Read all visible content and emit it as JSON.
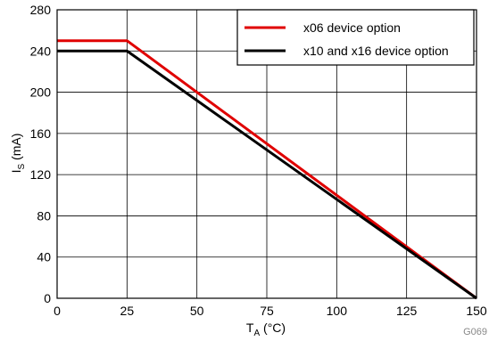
{
  "chart_data": {
    "type": "line",
    "xlabel": {
      "main": "T",
      "sub": "A",
      "unit": " (°C)"
    },
    "ylabel": {
      "main": "I",
      "sub": "S",
      "unit": " (mA)"
    },
    "xlim": [
      0,
      150
    ],
    "ylim": [
      0,
      280
    ],
    "x_ticks": [
      0,
      25,
      50,
      75,
      100,
      125,
      150
    ],
    "y_ticks": [
      0,
      40,
      80,
      120,
      160,
      200,
      240,
      280
    ],
    "grid": true,
    "legend_position": "top-right",
    "series": [
      {
        "name": "x06 device option",
        "color": "#e00000",
        "x": [
          0,
          25,
          150
        ],
        "y": [
          250,
          250,
          0
        ]
      },
      {
        "name": "x10 and x16 device option",
        "color": "#000000",
        "x": [
          0,
          25,
          150
        ],
        "y": [
          240,
          240,
          0
        ]
      }
    ],
    "figure_code": "G069"
  }
}
